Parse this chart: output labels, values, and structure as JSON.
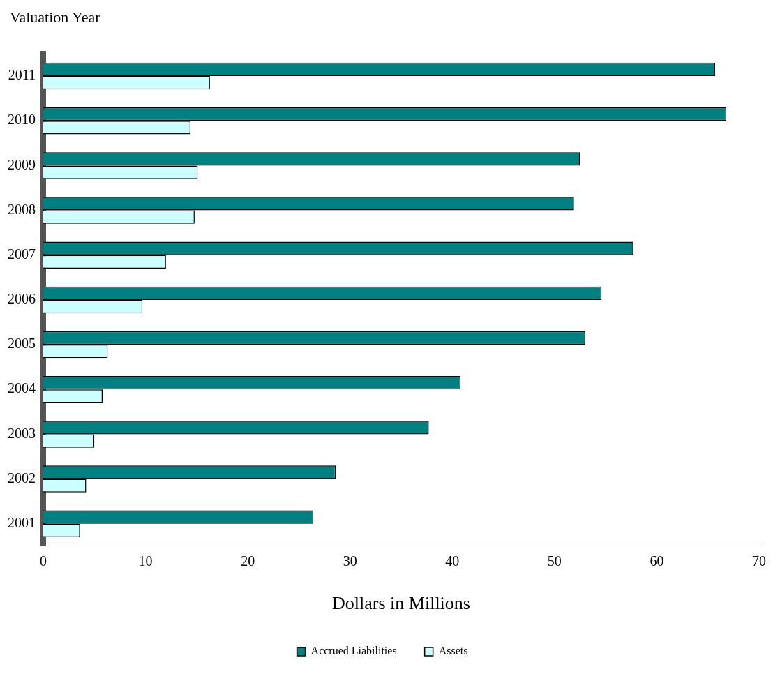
{
  "chart_data": {
    "type": "bar",
    "orientation": "horizontal",
    "ylabel": "Valuation Year",
    "xlabel": "Dollars in Millions",
    "categories": [
      "2011",
      "2010",
      "2009",
      "2008",
      "2007",
      "2006",
      "2005",
      "2004",
      "2003",
      "2002",
      "2001"
    ],
    "series": [
      {
        "name": "Accrued Liabilities",
        "color": "#008080",
        "values": [
          65.7,
          66.8,
          52.5,
          51.9,
          57.7,
          54.6,
          53.0,
          40.8,
          37.7,
          28.6,
          26.4
        ]
      },
      {
        "name": "Assets",
        "color": "#ccffff",
        "values": [
          16.3,
          14.4,
          15.1,
          14.8,
          12.0,
          9.7,
          6.3,
          5.8,
          5.0,
          4.2,
          3.6
        ]
      }
    ],
    "xlim": [
      0,
      70
    ],
    "xticks": [
      0,
      10,
      20,
      30,
      40,
      50,
      60,
      70
    ],
    "grid": false,
    "legend": "bottom"
  }
}
